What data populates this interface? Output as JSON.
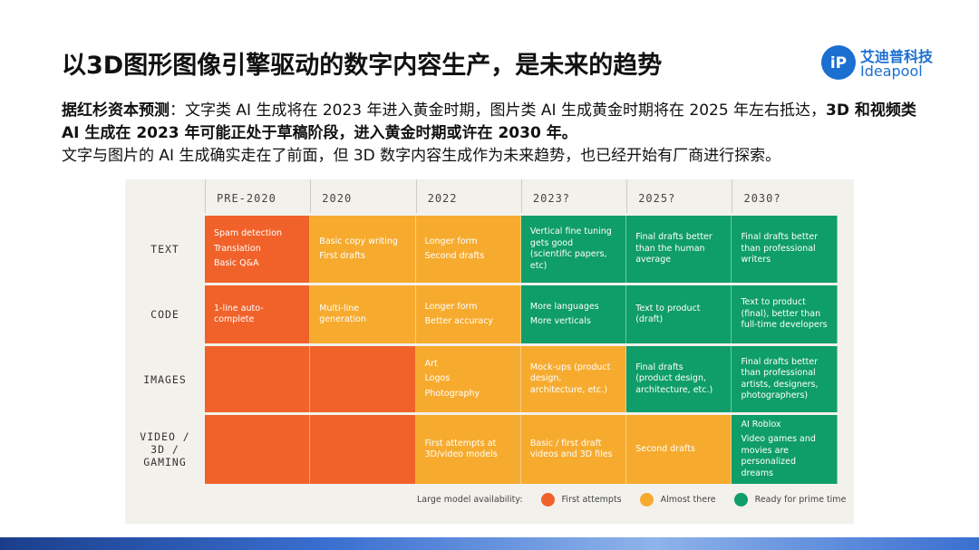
{
  "header": {
    "title": "以3D图形图像引擎驱动的数字内容生产，是未来的趋势",
    "logo": {
      "cn": "艾迪普科技",
      "en": "Ideapool"
    }
  },
  "intro": [
    [
      {
        "text": "据红杉资本预测",
        "bold": true
      },
      {
        "text": "：文字类 AI 生成将在 2023 年进入黄金时期，图片类 AI 生成黄金时期将在 2025 年左右抵达，",
        "bold": false
      },
      {
        "text": "3D 和视频类 AI 生成在 2023 年可能正处于草稿阶段，进入黄金时期或许在 2030 年。",
        "bold": true
      }
    ],
    [
      {
        "text": "文字与图片的 AI 生成确实走在了前面，但 3D 数字内容生成作为未来趋势，也已经开始有厂商进行探索。",
        "bold": false
      }
    ]
  ],
  "table": {
    "columns": [
      "PRE-2020",
      "2020",
      "2022",
      "2023?",
      "2025?",
      "2030?"
    ],
    "rows": [
      {
        "label": "TEXT",
        "cells": [
          {
            "color": "#f0622a",
            "text": [
              "Spam detection",
              "Translation",
              "Basic Q&A"
            ]
          },
          {
            "color": "#f6ab2f",
            "text": [
              "Basic copy writing",
              "First drafts"
            ]
          },
          {
            "color": "#f6ab2f",
            "text": [
              "Longer form",
              "Second drafts"
            ]
          },
          {
            "color": "#0f9d6a",
            "text": [
              "Vertical fine tuning gets good (scientific papers, etc)"
            ]
          },
          {
            "color": "#0f9d6a",
            "text": [
              "Final drafts better than the human average"
            ]
          },
          {
            "color": "#0f9d6a",
            "text": [
              "Final drafts better than professional writers"
            ]
          }
        ]
      },
      {
        "label": "CODE",
        "cells": [
          {
            "color": "#f0622a",
            "text": [
              "1-line auto-complete"
            ]
          },
          {
            "color": "#f6ab2f",
            "text": [
              "Multi-line generation"
            ]
          },
          {
            "color": "#f6ab2f",
            "text": [
              "Longer form",
              "Better accuracy"
            ]
          },
          {
            "color": "#0f9d6a",
            "text": [
              "More languages",
              "More verticals"
            ]
          },
          {
            "color": "#0f9d6a",
            "text": [
              "Text to product (draft)"
            ]
          },
          {
            "color": "#0f9d6a",
            "text": [
              "Text to product (final), better than full-time developers"
            ]
          }
        ]
      },
      {
        "label": "IMAGES",
        "cells": [
          {
            "color": "#f0622a",
            "text": []
          },
          {
            "color": "#f0622a",
            "text": []
          },
          {
            "color": "#f6ab2f",
            "text": [
              "Art",
              "Logos",
              "Photography"
            ]
          },
          {
            "color": "#f6ab2f",
            "text": [
              "Mock-ups (product design, architecture, etc.)"
            ]
          },
          {
            "color": "#0f9d6a",
            "text": [
              "Final drafts (product design, architecture, etc.)"
            ]
          },
          {
            "color": "#0f9d6a",
            "text": [
              "Final drafts better than professional artists, designers, photographers)"
            ]
          }
        ]
      },
      {
        "label": "VIDEO / 3D / GAMING",
        "cells": [
          {
            "color": "#f0622a",
            "text": []
          },
          {
            "color": "#f0622a",
            "text": []
          },
          {
            "color": "#f6ab2f",
            "text": [
              "First attempts at 3D/video models"
            ]
          },
          {
            "color": "#f6ab2f",
            "text": [
              "Basic / first draft videos and 3D files"
            ]
          },
          {
            "color": "#f6ab2f",
            "text": [
              "Second drafts"
            ]
          },
          {
            "color": "#0f9d6a",
            "text": [
              "AI Roblox",
              "Video games and movies are personalized dreams"
            ]
          }
        ]
      }
    ]
  },
  "legend": {
    "label": "Large model availability:",
    "items": [
      {
        "label": "First attempts",
        "color": "#f0622a"
      },
      {
        "label": "Almost there",
        "color": "#f6ab2f"
      },
      {
        "label": "Ready for prime time",
        "color": "#0f9d6a"
      }
    ]
  }
}
